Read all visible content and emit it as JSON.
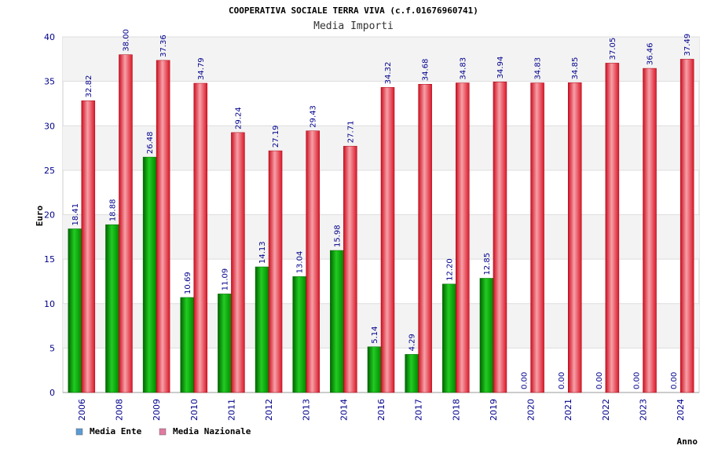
{
  "chart_data": {
    "type": "bar",
    "title": "COOPERATIVA SOCIALE TERRA VIVA (c.f.01676960741)",
    "subtitle": "Media Importi",
    "xlabel": "Anno",
    "ylabel": "Euro",
    "ylim": [
      0,
      40
    ],
    "yticks": [
      "0",
      "5",
      "10",
      "15",
      "20",
      "25",
      "30",
      "35",
      "40"
    ],
    "grid": true,
    "legend_position": "bottom-left",
    "categories": [
      "2006",
      "2008",
      "2009",
      "2010",
      "2011",
      "2012",
      "2013",
      "2014",
      "2016",
      "2017",
      "2018",
      "2019",
      "2020",
      "2021",
      "2022",
      "2023",
      "2024"
    ],
    "series": [
      {
        "name": "Media Ente",
        "color": "#00aa00",
        "legend_color": "#5b9bd5",
        "values": [
          18.41,
          18.88,
          26.48,
          10.69,
          11.09,
          14.13,
          13.04,
          15.98,
          5.14,
          4.29,
          12.2,
          12.85,
          0.0,
          0.0,
          0.0,
          0.0,
          0.0
        ],
        "labels": [
          "18.41",
          "18.88",
          "26.48",
          "10.69",
          "11.09",
          "14.13",
          "13.04",
          "15.98",
          "5.14",
          "4.29",
          "12.20",
          "12.85",
          "0.00",
          "0.00",
          "0.00",
          "0.00",
          "0.00"
        ]
      },
      {
        "name": "Media Nazionale",
        "color": "#e8202a",
        "legend_color": "#e07aa0",
        "values": [
          32.82,
          38.0,
          37.36,
          34.79,
          29.24,
          27.19,
          29.43,
          27.71,
          34.32,
          34.68,
          34.83,
          34.94,
          34.83,
          34.85,
          37.05,
          36.46,
          37.49
        ],
        "labels": [
          "32.82",
          "38.00",
          "37.36",
          "34.79",
          "29.24",
          "27.19",
          "29.43",
          "27.71",
          "34.32",
          "34.68",
          "34.83",
          "34.94",
          "34.83",
          "34.85",
          "37.05",
          "36.46",
          "37.49"
        ]
      }
    ]
  }
}
